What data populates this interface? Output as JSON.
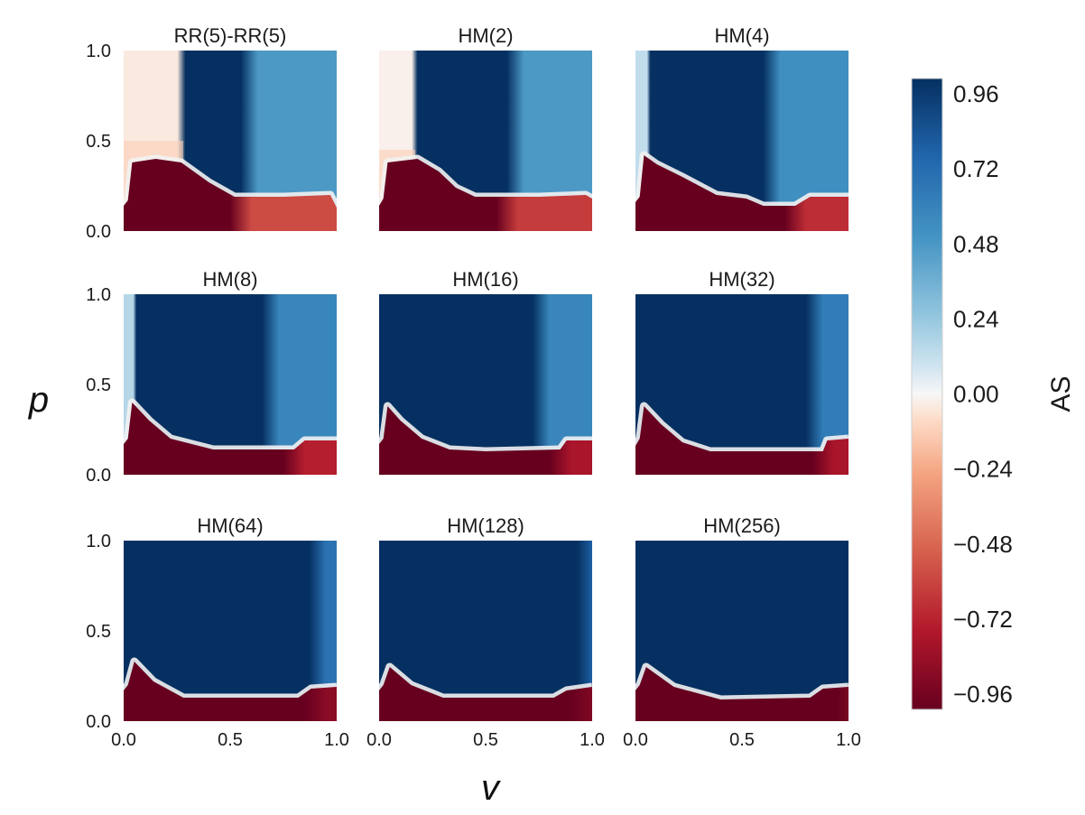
{
  "chart_data": {
    "type": "heatmap",
    "xlabel": "v",
    "ylabel": "p",
    "xlim": [
      0.0,
      1.0
    ],
    "ylim": [
      0.0,
      1.0
    ],
    "x_ticks": [
      "0.0",
      "0.5",
      "1.0"
    ],
    "y_ticks": [
      "0.0",
      "0.5",
      "1.0"
    ],
    "colorbar": {
      "label": "AS",
      "range": [
        -0.96,
        0.96
      ],
      "ticks": [
        "0.96",
        "0.72",
        "0.48",
        "0.24",
        "0.00",
        "−0.24",
        "−0.48",
        "−0.72",
        "−0.96"
      ],
      "stops": [
        {
          "value": -0.96,
          "color": "#67001f"
        },
        {
          "value": -0.72,
          "color": "#b2182b"
        },
        {
          "value": -0.48,
          "color": "#d6604d"
        },
        {
          "value": -0.24,
          "color": "#f4a582"
        },
        {
          "value": -0.08,
          "color": "#fddbc7"
        },
        {
          "value": 0.0,
          "color": "#f7f7f7"
        },
        {
          "value": 0.08,
          "color": "#d1e5f0"
        },
        {
          "value": 0.24,
          "color": "#92c5de"
        },
        {
          "value": 0.48,
          "color": "#4393c3"
        },
        {
          "value": 0.72,
          "color": "#2166ac"
        },
        {
          "value": 0.96,
          "color": "#053061"
        }
      ]
    },
    "panels": [
      {
        "title": "RR(5)-RR(5)",
        "boundary": [
          [
            0.0,
            0.14
          ],
          [
            0.02,
            0.17
          ],
          [
            0.04,
            0.38
          ],
          [
            0.15,
            0.4
          ],
          [
            0.27,
            0.38
          ],
          [
            0.4,
            0.27
          ],
          [
            0.52,
            0.19
          ],
          [
            0.75,
            0.19
          ],
          [
            0.97,
            0.2
          ],
          [
            1.0,
            0.13
          ]
        ],
        "white_band_x": [
          0.0,
          0.28
        ],
        "white_top": 0.5,
        "white_value": -0.04,
        "dark_blue_x": [
          0.28,
          0.55
        ],
        "right_blue_value": 0.45,
        "lower_red_value": -0.55,
        "lower_red_from_x": 0.55
      },
      {
        "title": "HM(2)",
        "boundary": [
          [
            0.0,
            0.14
          ],
          [
            0.02,
            0.18
          ],
          [
            0.04,
            0.38
          ],
          [
            0.18,
            0.4
          ],
          [
            0.28,
            0.33
          ],
          [
            0.36,
            0.24
          ],
          [
            0.45,
            0.19
          ],
          [
            0.55,
            0.19
          ],
          [
            0.75,
            0.19
          ],
          [
            0.97,
            0.2
          ],
          [
            1.0,
            0.18
          ]
        ],
        "white_band_x": [
          0.0,
          0.17
        ],
        "white_top": 0.45,
        "white_value": -0.02,
        "dark_blue_x": [
          0.17,
          0.6
        ],
        "right_blue_value": 0.45,
        "lower_red_value": -0.6,
        "lower_red_from_x": 0.6
      },
      {
        "title": "HM(4)",
        "boundary": [
          [
            0.0,
            0.16
          ],
          [
            0.02,
            0.19
          ],
          [
            0.04,
            0.42
          ],
          [
            0.1,
            0.37
          ],
          [
            0.22,
            0.3
          ],
          [
            0.38,
            0.2
          ],
          [
            0.52,
            0.18
          ],
          [
            0.6,
            0.14
          ],
          [
            0.75,
            0.14
          ],
          [
            0.82,
            0.19
          ],
          [
            1.0,
            0.19
          ]
        ],
        "white_band_x": [
          0.0,
          0.06
        ],
        "white_top": 1.0,
        "white_value": 0.12,
        "dark_blue_x": [
          0.06,
          0.6
        ],
        "right_blue_value": 0.5,
        "lower_red_value": -0.65,
        "lower_red_from_x": 0.75
      },
      {
        "title": "HM(8)",
        "boundary": [
          [
            0.0,
            0.17
          ],
          [
            0.02,
            0.2
          ],
          [
            0.04,
            0.4
          ],
          [
            0.12,
            0.3
          ],
          [
            0.22,
            0.2
          ],
          [
            0.32,
            0.17
          ],
          [
            0.42,
            0.14
          ],
          [
            0.8,
            0.14
          ],
          [
            0.85,
            0.19
          ],
          [
            1.0,
            0.19
          ]
        ],
        "white_band_x": [
          0.0,
          0.05
        ],
        "white_top": 1.0,
        "white_value": 0.15,
        "dark_blue_x": [
          0.05,
          0.65
        ],
        "right_blue_value": 0.55,
        "lower_red_value": -0.7,
        "lower_red_from_x": 0.8
      },
      {
        "title": "HM(16)",
        "boundary": [
          [
            0.0,
            0.17
          ],
          [
            0.02,
            0.2
          ],
          [
            0.04,
            0.38
          ],
          [
            0.1,
            0.3
          ],
          [
            0.2,
            0.2
          ],
          [
            0.33,
            0.14
          ],
          [
            0.5,
            0.13
          ],
          [
            0.85,
            0.14
          ],
          [
            0.88,
            0.19
          ],
          [
            1.0,
            0.19
          ]
        ],
        "white_band_x": [
          0.0,
          0.0
        ],
        "white_top": 0.0,
        "white_value": 0.3,
        "dark_blue_x": [
          0.0,
          0.72
        ],
        "right_blue_value": 0.55,
        "lower_red_value": -0.75,
        "lower_red_from_x": 0.85
      },
      {
        "title": "HM(32)",
        "boundary": [
          [
            0.0,
            0.16
          ],
          [
            0.02,
            0.2
          ],
          [
            0.04,
            0.38
          ],
          [
            0.12,
            0.28
          ],
          [
            0.22,
            0.18
          ],
          [
            0.35,
            0.13
          ],
          [
            0.88,
            0.13
          ],
          [
            0.9,
            0.19
          ],
          [
            1.0,
            0.2
          ]
        ],
        "white_band_x": [
          0.0,
          0.0
        ],
        "white_top": 0.0,
        "white_value": 0.3,
        "dark_blue_x": [
          0.0,
          0.8
        ],
        "right_blue_value": 0.6,
        "lower_red_value": -0.75,
        "lower_red_from_x": 0.88
      },
      {
        "title": "HM(64)",
        "boundary": [
          [
            0.0,
            0.17
          ],
          [
            0.02,
            0.2
          ],
          [
            0.05,
            0.33
          ],
          [
            0.14,
            0.22
          ],
          [
            0.28,
            0.13
          ],
          [
            0.82,
            0.13
          ],
          [
            0.88,
            0.18
          ],
          [
            1.0,
            0.19
          ]
        ],
        "white_band_x": [
          0.0,
          0.0
        ],
        "white_top": 0.0,
        "white_value": 0.3,
        "dark_blue_x": [
          0.0,
          0.87
        ],
        "right_blue_value": 0.65,
        "lower_red_value": -0.85,
        "lower_red_from_x": 0.9
      },
      {
        "title": "HM(128)",
        "boundary": [
          [
            0.0,
            0.17
          ],
          [
            0.02,
            0.2
          ],
          [
            0.05,
            0.3
          ],
          [
            0.15,
            0.2
          ],
          [
            0.3,
            0.13
          ],
          [
            0.82,
            0.13
          ],
          [
            0.88,
            0.17
          ],
          [
            1.0,
            0.19
          ]
        ],
        "white_band_x": [
          0.0,
          0.0
        ],
        "white_top": 0.0,
        "white_value": 0.3,
        "dark_blue_x": [
          0.0,
          0.93
        ],
        "right_blue_value": 0.75,
        "lower_red_value": -0.88,
        "lower_red_from_x": 0.95
      },
      {
        "title": "HM(256)",
        "boundary": [
          [
            0.0,
            0.17
          ],
          [
            0.02,
            0.2
          ],
          [
            0.05,
            0.3
          ],
          [
            0.18,
            0.19
          ],
          [
            0.4,
            0.12
          ],
          [
            0.82,
            0.13
          ],
          [
            0.88,
            0.18
          ],
          [
            1.0,
            0.19
          ]
        ],
        "white_band_x": [
          0.0,
          0.0
        ],
        "white_top": 0.0,
        "white_value": 0.3,
        "dark_blue_x": [
          0.0,
          1.0
        ],
        "right_blue_value": 0.96,
        "lower_red_value": -0.9,
        "lower_red_from_x": 1.0
      }
    ]
  }
}
